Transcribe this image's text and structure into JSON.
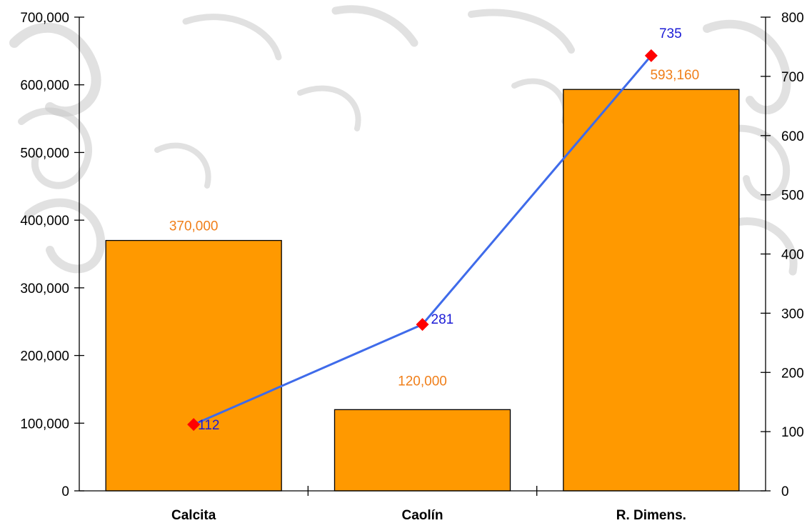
{
  "chart_data": {
    "type": "bar",
    "categories": [
      "Calcita",
      "Caolín",
      "R. Dimens."
    ],
    "series": [
      {
        "type": "bar",
        "axis": "left",
        "values": [
          370000,
          120000,
          593160
        ],
        "labels": [
          "370,000",
          "120,000",
          "593,160"
        ],
        "color": "#ff9900",
        "label_color": "#f07f1a"
      },
      {
        "type": "line",
        "axis": "right",
        "values": [
          112,
          281,
          735
        ],
        "labels": [
          "112",
          "281",
          "735"
        ],
        "color": "#3f6bea",
        "marker_color": "#ff0000",
        "marker": "diamond",
        "label_color": "#1b1bd6"
      }
    ],
    "y_left": {
      "ylim": [
        0,
        700000
      ],
      "ticks": [
        "0",
        "100,000",
        "200,000",
        "300,000",
        "400,000",
        "500,000",
        "600,000",
        "700,000"
      ]
    },
    "y_right": {
      "ylim": [
        0,
        800
      ],
      "ticks": [
        "0",
        "100",
        "200",
        "300",
        "400",
        "500",
        "600",
        "700",
        "800"
      ]
    },
    "title": "",
    "xlabel": "",
    "ylabel": "",
    "grid": false,
    "legend": "none"
  }
}
